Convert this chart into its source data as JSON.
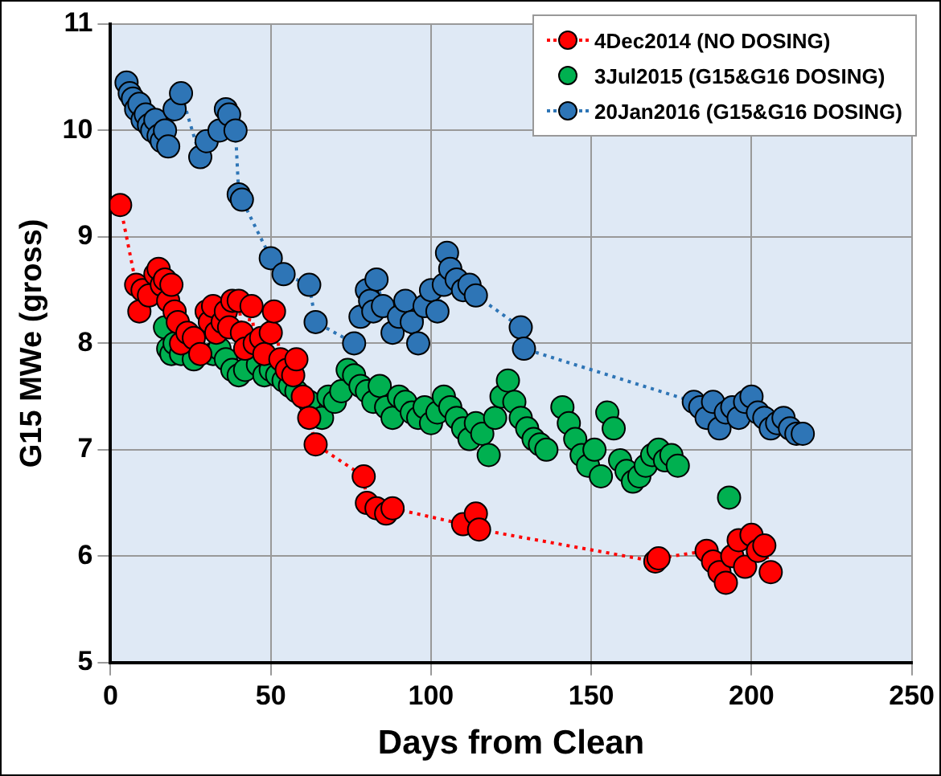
{
  "chart_data": {
    "type": "line",
    "xlabel": "Days from Clean",
    "ylabel": "G15 MWe (gross)",
    "xlim": [
      0,
      250
    ],
    "xticks": [
      0,
      50,
      100,
      150,
      200,
      250
    ],
    "ylim": [
      5,
      11
    ],
    "yticks": [
      5,
      6,
      7,
      8,
      9,
      10,
      11
    ],
    "grid": true,
    "legend": "top right",
    "marker": "circle",
    "line_style": "dotted",
    "series": [
      {
        "name": "4Dec2014 (NO DOSING)",
        "color": "#ff0000",
        "x": [
          3,
          8,
          9,
          10,
          12,
          14,
          15,
          16,
          17,
          18,
          19,
          20,
          21,
          22,
          24,
          26,
          28,
          30,
          31,
          32,
          33,
          35,
          36,
          37,
          38,
          40,
          41,
          42,
          44,
          45,
          47,
          48,
          50,
          51,
          53,
          55,
          57,
          58,
          60,
          62,
          64,
          79,
          80,
          83,
          86,
          88,
          110,
          114,
          115,
          170,
          171,
          186,
          188,
          190,
          192,
          194,
          196,
          198,
          200,
          202,
          204,
          206
        ],
        "values": [
          9.3,
          8.55,
          8.3,
          8.5,
          8.45,
          8.65,
          8.7,
          8.55,
          8.6,
          8.4,
          8.55,
          8.3,
          8.2,
          8.0,
          8.1,
          8.05,
          7.9,
          8.3,
          8.2,
          8.35,
          8.1,
          8.2,
          8.3,
          8.15,
          8.4,
          8.4,
          8.1,
          7.95,
          8.35,
          8.0,
          8.05,
          7.9,
          8.1,
          8.3,
          7.85,
          7.75,
          7.7,
          7.85,
          7.5,
          7.3,
          7.05,
          6.75,
          6.5,
          6.45,
          6.4,
          6.45,
          6.3,
          6.4,
          6.25,
          5.95,
          5.98,
          6.05,
          5.95,
          5.85,
          5.75,
          6.0,
          6.15,
          5.9,
          6.2,
          6.05,
          6.1,
          5.85
        ]
      },
      {
        "name": "3Jul2015 (G15&G16 DOSING)",
        "type": "scatter",
        "color": "#00b050",
        "x": [
          17,
          18,
          19,
          20,
          22,
          26,
          32,
          34,
          36,
          38,
          40,
          42,
          46,
          48,
          50,
          52,
          54,
          56,
          58,
          62,
          66,
          68,
          70,
          72,
          74,
          76,
          78,
          80,
          82,
          84,
          86,
          88,
          90,
          92,
          94,
          96,
          98,
          100,
          102,
          104,
          106,
          108,
          110,
          112,
          114,
          116,
          118,
          120,
          122,
          124,
          126,
          128,
          130,
          132,
          134,
          136,
          141,
          143,
          145,
          147,
          149,
          151,
          153,
          155,
          157,
          159,
          161,
          163,
          165,
          167,
          169,
          171,
          173,
          175,
          177,
          193
        ],
        "values": [
          8.15,
          7.95,
          7.9,
          8.0,
          7.9,
          7.85,
          7.9,
          7.95,
          7.85,
          7.75,
          7.7,
          7.75,
          7.8,
          7.7,
          7.75,
          7.7,
          7.65,
          7.6,
          7.55,
          7.45,
          7.3,
          7.5,
          7.45,
          7.55,
          7.75,
          7.7,
          7.6,
          7.55,
          7.45,
          7.6,
          7.4,
          7.3,
          7.5,
          7.45,
          7.35,
          7.3,
          7.4,
          7.25,
          7.35,
          7.5,
          7.4,
          7.3,
          7.2,
          7.1,
          7.25,
          7.15,
          6.95,
          7.3,
          7.5,
          7.65,
          7.45,
          7.3,
          7.2,
          7.1,
          7.05,
          7.0,
          7.4,
          7.25,
          7.1,
          6.95,
          6.85,
          7.0,
          6.75,
          7.35,
          7.2,
          6.9,
          6.8,
          6.7,
          6.75,
          6.85,
          6.95,
          7.0,
          6.9,
          6.95,
          6.85,
          6.55
        ]
      },
      {
        "name": "20Jan2016 (G15&G16 DOSING)",
        "color": "#2e75b6",
        "x": [
          5,
          6,
          7,
          8,
          9,
          10,
          11,
          12,
          13,
          14,
          15,
          16,
          17,
          18,
          20,
          22,
          28,
          30,
          34,
          36,
          37,
          39,
          40,
          41,
          50,
          54,
          62,
          64,
          76,
          78,
          80,
          81,
          82,
          83,
          85,
          88,
          90,
          92,
          94,
          96,
          98,
          100,
          102,
          104,
          105,
          106,
          108,
          110,
          112,
          114,
          128,
          129,
          182,
          184,
          186,
          188,
          190,
          192,
          194,
          196,
          198,
          200,
          202,
          204,
          206,
          208,
          210,
          212,
          214,
          216
        ],
        "values": [
          10.45,
          10.35,
          10.3,
          10.2,
          10.25,
          10.1,
          10.15,
          10.05,
          10.0,
          10.1,
          9.95,
          9.9,
          10.0,
          9.85,
          10.2,
          10.35,
          9.75,
          9.9,
          10.0,
          10.2,
          10.15,
          10.0,
          9.4,
          9.35,
          8.8,
          8.65,
          8.55,
          8.2,
          8.0,
          8.25,
          8.5,
          8.4,
          8.3,
          8.6,
          8.35,
          8.1,
          8.25,
          8.4,
          8.2,
          8.0,
          8.35,
          8.5,
          8.3,
          8.55,
          8.85,
          8.7,
          8.6,
          8.5,
          8.55,
          8.45,
          8.15,
          7.95,
          7.45,
          7.4,
          7.3,
          7.45,
          7.2,
          7.35,
          7.4,
          7.3,
          7.45,
          7.5,
          7.35,
          7.3,
          7.2,
          7.25,
          7.3,
          7.2,
          7.15,
          7.15
        ]
      }
    ]
  }
}
